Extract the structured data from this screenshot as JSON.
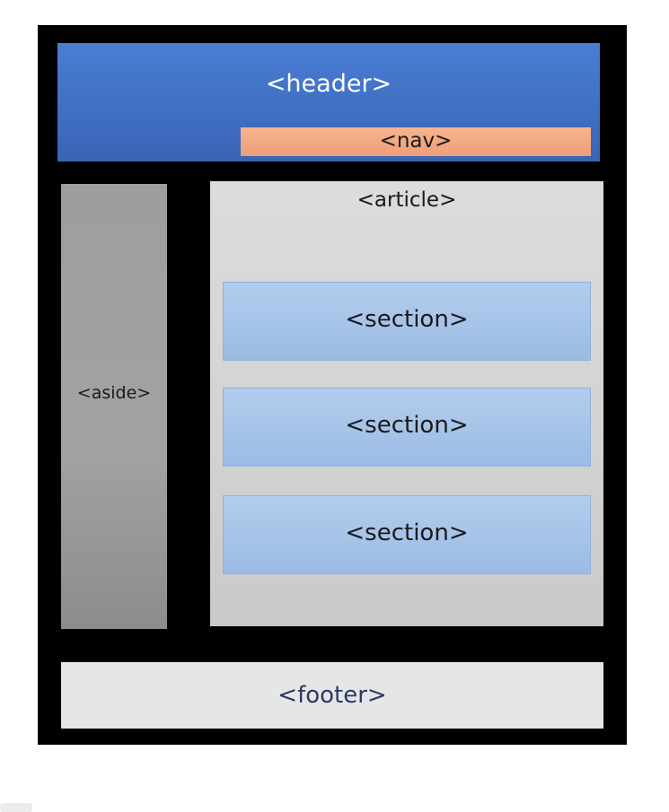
{
  "labels": {
    "header": "<header>",
    "nav": "<nav>",
    "aside": "<aside>",
    "article": "<article>",
    "sections": [
      "<section>",
      "<section>",
      "<section>"
    ],
    "footer": "<footer>"
  },
  "colors": {
    "frame": "#000000",
    "header": "#3f70c4",
    "nav": "#ef9e78",
    "aside": "#a0a0a0",
    "article": "#d2d2d2",
    "section": "#a6c3e8",
    "footer": "#e6e6e6"
  }
}
